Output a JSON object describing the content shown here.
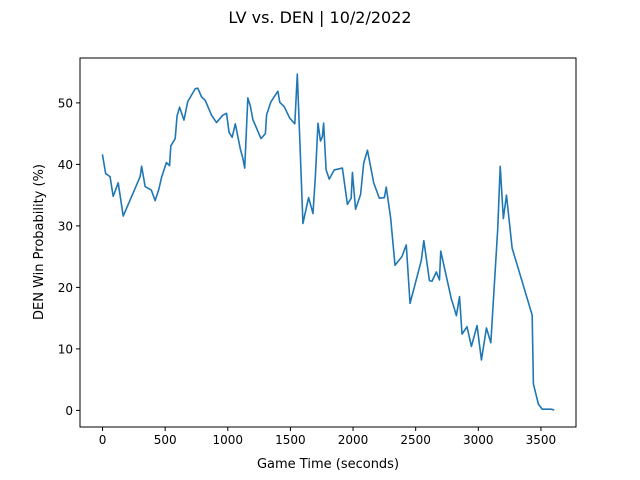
{
  "chart_data": {
    "type": "line",
    "title": "LV vs. DEN | 10/2/2022",
    "xlabel": "Game Time (seconds)",
    "ylabel": "DEN Win Probability (%)",
    "xlim": [
      -180,
      3780
    ],
    "ylim": [
      -2.7,
      57.3
    ],
    "xticks": [
      0,
      500,
      1000,
      1500,
      2000,
      2500,
      3000,
      3500
    ],
    "yticks": [
      0,
      10,
      20,
      30,
      40,
      50
    ],
    "grid": false,
    "legend": "none",
    "line_color": "#1f77b4",
    "series": [
      {
        "x": [
          0,
          25,
          60,
          85,
          125,
          165,
          300,
          312,
          340,
          390,
          420,
          450,
          470,
          510,
          535,
          545,
          580,
          595,
          615,
          650,
          680,
          740,
          760,
          790,
          820,
          870,
          910,
          960,
          990,
          1010,
          1035,
          1060,
          1100,
          1120,
          1135,
          1160,
          1180,
          1200,
          1265,
          1300,
          1310,
          1345,
          1400,
          1415,
          1450,
          1495,
          1535,
          1555,
          1600,
          1645,
          1680,
          1700,
          1720,
          1740,
          1755,
          1765,
          1785,
          1810,
          1850,
          1915,
          1955,
          1985,
          1995,
          2020,
          2060,
          2085,
          2115,
          2165,
          2210,
          2250,
          2265,
          2300,
          2335,
          2390,
          2425,
          2455,
          2530,
          2545,
          2565,
          2610,
          2630,
          2665,
          2690,
          2700,
          2785,
          2805,
          2825,
          2850,
          2870,
          2910,
          2945,
          2990,
          3025,
          3065,
          3100,
          3155,
          3175,
          3200,
          3225,
          3270,
          3430,
          3440,
          3480,
          3510,
          3580,
          3600
        ],
        "values": [
          41.5,
          38.5,
          38.0,
          34.8,
          37.0,
          31.6,
          38.0,
          39.7,
          36.4,
          35.8,
          34.1,
          36.0,
          37.8,
          40.3,
          39.8,
          43.0,
          44.2,
          47.9,
          49.3,
          47.2,
          50.2,
          52.3,
          52.4,
          51.0,
          50.4,
          48.0,
          46.8,
          48.0,
          48.3,
          45.2,
          44.4,
          46.6,
          42.5,
          41.0,
          39.4,
          50.8,
          49.5,
          47.3,
          44.2,
          45.0,
          48.1,
          50.2,
          51.9,
          50.1,
          49.4,
          47.5,
          46.6,
          54.7,
          30.4,
          34.6,
          32.0,
          38.3,
          46.7,
          43.8,
          44.5,
          46.7,
          39.1,
          37.6,
          39.1,
          39.4,
          33.5,
          34.5,
          38.7,
          32.7,
          35.1,
          40.2,
          42.3,
          37.0,
          34.5,
          34.6,
          36.3,
          31.3,
          23.6,
          25.0,
          26.9,
          17.4,
          23.2,
          24.4,
          27.6,
          21.1,
          21.0,
          22.5,
          21.2,
          25.9,
          18.1,
          16.8,
          15.4,
          18.5,
          12.4,
          13.6,
          10.4,
          13.8,
          8.2,
          13.4,
          11.0,
          29.5,
          39.7,
          31.2,
          35.0,
          26.4,
          15.5,
          4.3,
          1.0,
          0.2,
          0.2,
          0.1
        ]
      }
    ]
  }
}
